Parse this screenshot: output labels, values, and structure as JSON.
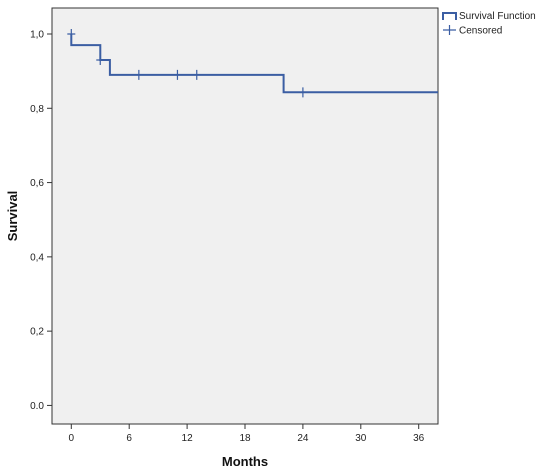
{
  "chart_data": {
    "type": "line",
    "title": "",
    "xlabel": "Months",
    "ylabel": "Survival",
    "xlim": [
      -2,
      38
    ],
    "ylim": [
      -0.05,
      1.07
    ],
    "x_ticks": [
      0,
      6,
      12,
      18,
      24,
      30,
      36
    ],
    "x_tick_labels": [
      "0",
      "6",
      "12",
      "18",
      "24",
      "30",
      "36"
    ],
    "y_ticks": [
      0.0,
      0.2,
      0.4,
      0.6,
      0.8,
      1.0
    ],
    "y_tick_labels": [
      "0.0",
      "0,2",
      "0,4",
      "0,6",
      "0,8",
      "1,0"
    ],
    "grid": false,
    "legend_position": "top-right-outside",
    "series": [
      {
        "name": "Survival Function",
        "step_points": [
          [
            0,
            1.0
          ],
          [
            0,
            0.97
          ],
          [
            3,
            0.97
          ],
          [
            3,
            0.93
          ],
          [
            4,
            0.93
          ],
          [
            4,
            0.89
          ],
          [
            22,
            0.89
          ],
          [
            22,
            0.843
          ],
          [
            38,
            0.843
          ]
        ]
      }
    ],
    "censored": {
      "name": "Censored",
      "points": [
        [
          0,
          1.0
        ],
        [
          3,
          0.93
        ],
        [
          7,
          0.89
        ],
        [
          11,
          0.89
        ],
        [
          13,
          0.89
        ],
        [
          24,
          0.843
        ]
      ]
    },
    "colors": {
      "line": "#3b5ea3",
      "plot_background": "#f0f0f0",
      "axis": "#333333"
    }
  }
}
